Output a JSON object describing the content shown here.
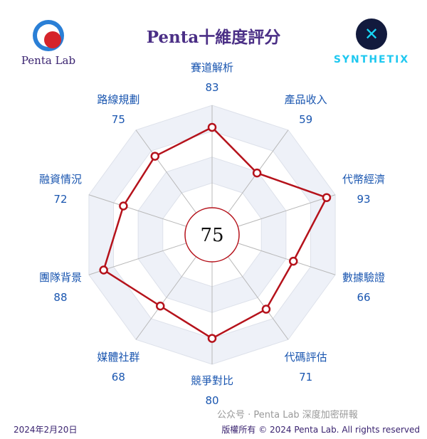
{
  "header": {
    "title": "Penta十維度評分",
    "left_brand": "Penta Lab",
    "right_brand": "SYNTHETIX"
  },
  "chart_data": {
    "type": "radar",
    "categories": [
      "賽道解析",
      "產品收入",
      "代幣經濟",
      "數據驗證",
      "代碼評估",
      "競爭對比",
      "媒體社群",
      "團隊背景",
      "融資情況",
      "路線規劃"
    ],
    "values": [
      83,
      59,
      93,
      66,
      71,
      80,
      68,
      88,
      72,
      75
    ],
    "rlim": [
      0,
      100
    ],
    "center_score": "75",
    "colors": {
      "series": "#b5121b",
      "label": "#1a56b0",
      "grid": "#c8c8c8",
      "ring_fill": "#eef1f8"
    }
  },
  "footer": {
    "date": "2024年2月20日",
    "copyright": "版權所有 © 2024 Penta Lab. All rights reserved",
    "watermark": "公众号 · Penta Lab 深度加密研報"
  }
}
